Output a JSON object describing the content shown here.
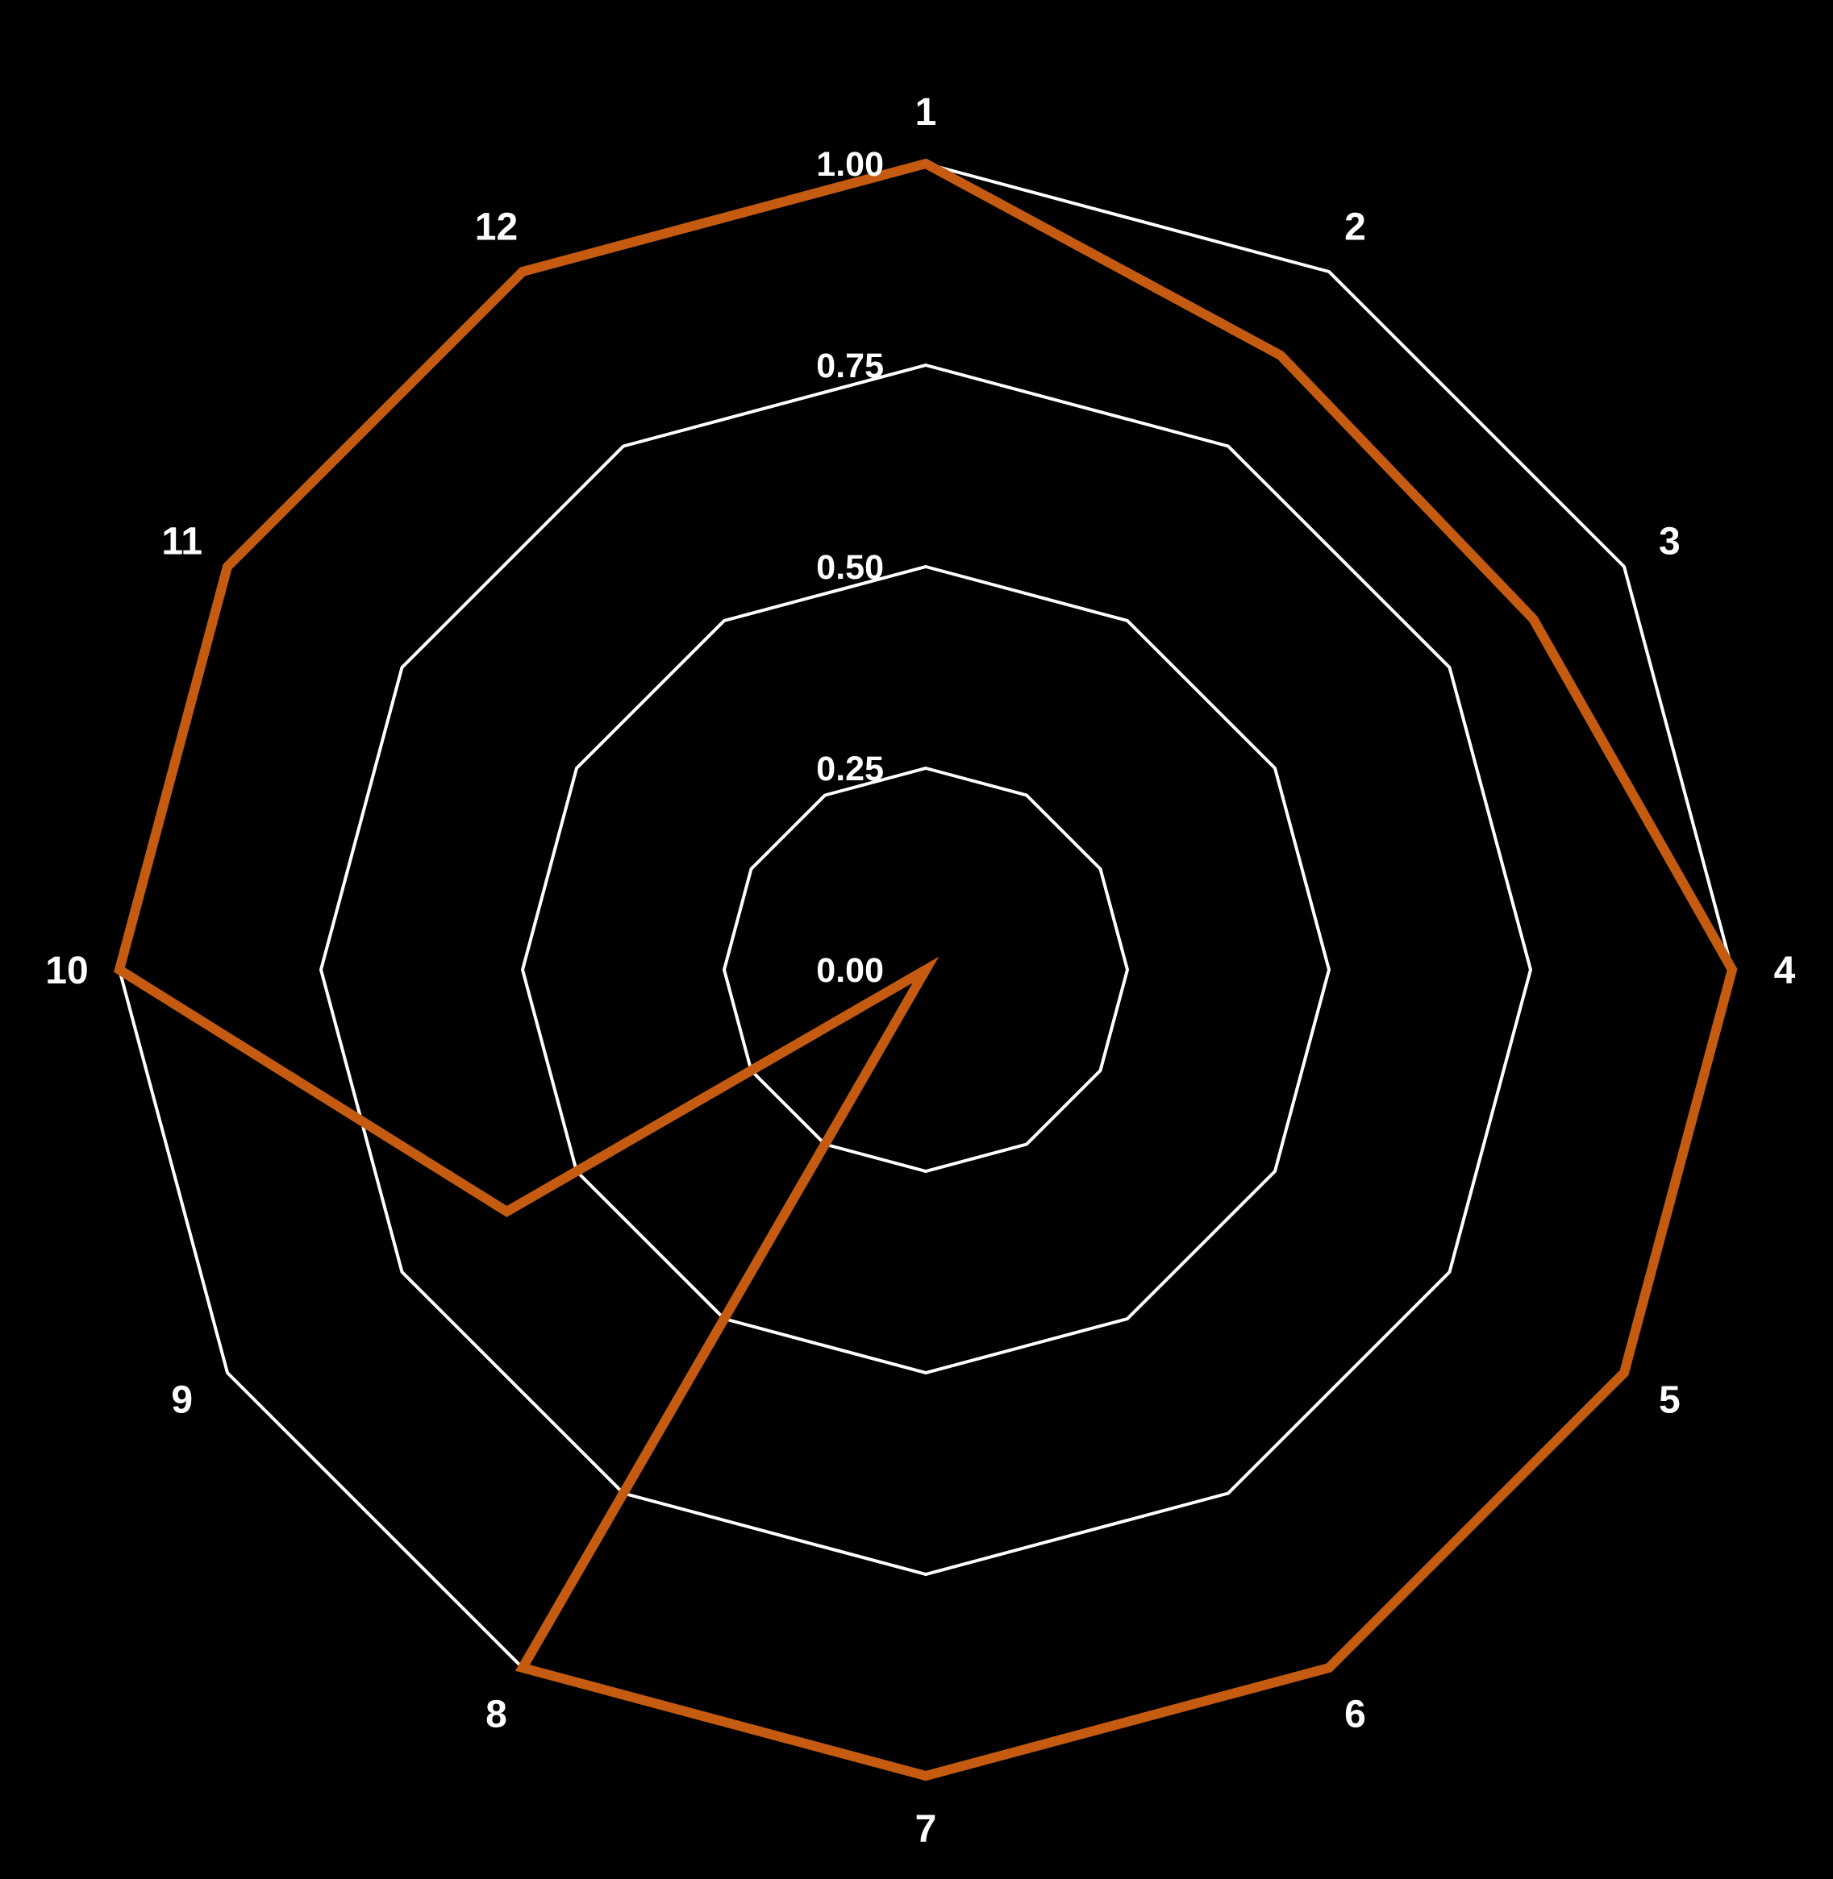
{
  "chart_data": {
    "type": "radar",
    "categories": [
      "1",
      "2",
      "3",
      "4",
      "5",
      "6",
      "7",
      "8",
      "9",
      "10",
      "11",
      "12"
    ],
    "tick_labels": [
      "0.00",
      "0.25",
      "0.50",
      "0.75",
      "1.00"
    ],
    "rlim": [
      0,
      1
    ],
    "grid": true,
    "legend": "none",
    "series": [
      {
        "values": [
          1.0,
          0.88,
          0.87,
          1.0,
          1.0,
          1.0,
          1.0,
          1.0,
          0.0,
          1.0,
          1.0,
          1.0
        ],
        "extra_points": [
          {
            "angle_deg": 240,
            "value": 0.6
          }
        ],
        "color": "#c55a11"
      }
    ],
    "background": "#000000",
    "grid_color": "#ffffff"
  }
}
